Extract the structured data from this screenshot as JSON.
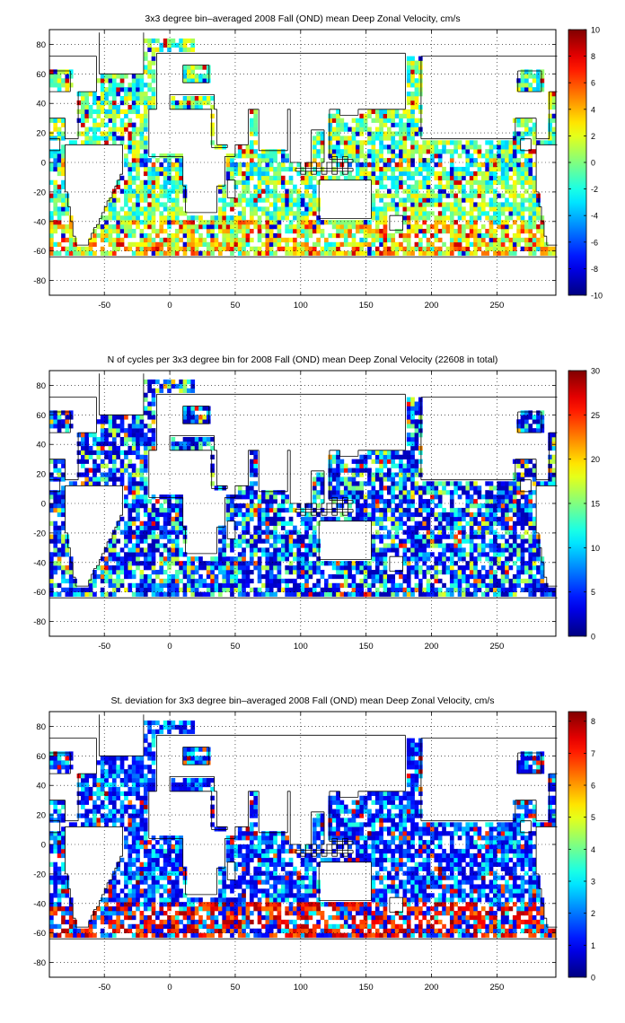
{
  "chart_data": [
    {
      "type": "heatmap",
      "title": "3x3 degree bin–averaged 2008 Fall (OND) mean Deep Zonal Velocity, cm/s",
      "xlabel": "",
      "ylabel": "",
      "xlim": [
        -92,
        295
      ],
      "ylim": [
        -90,
        90
      ],
      "x_ticks": [
        -50,
        0,
        50,
        100,
        150,
        200,
        250
      ],
      "y_ticks": [
        -80,
        -60,
        -40,
        -20,
        0,
        20,
        40,
        60,
        80
      ],
      "grid": true,
      "colormap": "jet",
      "colorbar": {
        "min": -10,
        "max": 10,
        "ticks": [
          -10,
          -8,
          -6,
          -4,
          -2,
          0,
          2,
          4,
          6,
          8,
          10
        ]
      },
      "bin_size_deg": 3,
      "field": "velocity"
    },
    {
      "type": "heatmap",
      "title": "N of cycles per 3x3 degree bin for 2008 Fall (OND) mean Deep Zonal Velocity (22608 in total)",
      "xlabel": "",
      "ylabel": "",
      "xlim": [
        -92,
        295
      ],
      "ylim": [
        -90,
        90
      ],
      "x_ticks": [
        -50,
        0,
        50,
        100,
        150,
        200,
        250
      ],
      "y_ticks": [
        -80,
        -60,
        -40,
        -20,
        0,
        20,
        40,
        60,
        80
      ],
      "grid": true,
      "colormap": "jet",
      "colorbar": {
        "min": 0,
        "max": 30,
        "ticks": [
          0,
          5,
          10,
          15,
          20,
          25,
          30
        ]
      },
      "bin_size_deg": 3,
      "total_cycles": 22608,
      "field": "count"
    },
    {
      "type": "heatmap",
      "title": "St. deviation for 3x3 degree bin–averaged 2008 Fall (OND) mean Deep Zonal Velocity, cm/s",
      "xlabel": "",
      "ylabel": "",
      "xlim": [
        -92,
        295
      ],
      "ylim": [
        -90,
        90
      ],
      "x_ticks": [
        -50,
        0,
        50,
        100,
        150,
        200,
        250
      ],
      "y_ticks": [
        -80,
        -60,
        -40,
        -20,
        0,
        20,
        40,
        60,
        80
      ],
      "grid": true,
      "colormap": "jet",
      "colorbar": {
        "min": 0,
        "max": 8.3,
        "ticks": [
          0,
          1,
          2,
          3,
          4,
          5,
          6,
          7,
          8
        ]
      },
      "bin_size_deg": 3,
      "field": "stdev"
    }
  ]
}
